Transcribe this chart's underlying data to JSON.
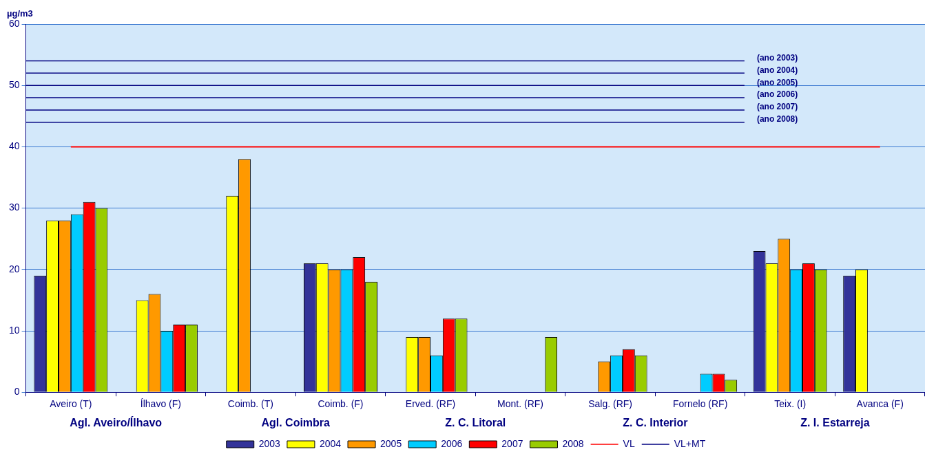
{
  "chart_data": {
    "type": "bar",
    "ylabel": "µg/m3",
    "categories": [
      "Aveiro (T)",
      "Ílhavo (F)",
      "Coimb. (T)",
      "Coimb. (F)",
      "Erved. (RF)",
      "Mont. (RF)",
      "Salg. (RF)",
      "Fornelo (RF)",
      "Teix. (I)",
      "Avanca (F)"
    ],
    "series": [
      {
        "name": "2003",
        "color": "#333399",
        "values": [
          19,
          null,
          null,
          21,
          null,
          null,
          null,
          null,
          23,
          19
        ]
      },
      {
        "name": "2004",
        "color": "#ffff00",
        "values": [
          28,
          15,
          32,
          21,
          9,
          null,
          null,
          null,
          21,
          20
        ]
      },
      {
        "name": "2005",
        "color": "#ff9900",
        "values": [
          28,
          16,
          38,
          20,
          9,
          null,
          5,
          null,
          25,
          null
        ]
      },
      {
        "name": "2006",
        "color": "#00ccff",
        "values": [
          29,
          10,
          null,
          20,
          6,
          null,
          6,
          3,
          20,
          null
        ]
      },
      {
        "name": "2007",
        "color": "#ff0000",
        "values": [
          31,
          11,
          null,
          22,
          12,
          null,
          7,
          3,
          21,
          null
        ]
      },
      {
        "name": "2008",
        "color": "#99cc00",
        "values": [
          30,
          11,
          null,
          18,
          12,
          9,
          6,
          2,
          20,
          null
        ]
      },
      {
        "name": "VL",
        "type": "line",
        "color": "#ff0000",
        "values": [
          40,
          40,
          40,
          40,
          40,
          40,
          40,
          40,
          40,
          40
        ]
      }
    ],
    "ref_lines": [
      {
        "axis": "y",
        "value": 54,
        "label": "(ano 2003)",
        "color": "#000080"
      },
      {
        "axis": "y",
        "value": 52,
        "label": "(ano 2004)",
        "color": "#000080"
      },
      {
        "axis": "y",
        "value": 50,
        "label": "(ano 2005)",
        "color": "#000080"
      },
      {
        "axis": "y",
        "value": 48,
        "label": "(ano 2006)",
        "color": "#000080"
      },
      {
        "axis": "y",
        "value": 46,
        "label": "(ano 2007)",
        "color": "#000080"
      },
      {
        "axis": "y",
        "value": 44,
        "label": "(ano 2008)",
        "color": "#000080"
      }
    ],
    "annotations": [
      "Agl. Aveiro/Ílhavo",
      "Agl. Coimbra",
      "Z. C. Litoral",
      "Z. C. Interior",
      "Z. I. Estarreja",
      "VL+MT"
    ],
    "ylim": [
      0,
      60
    ],
    "yticks": [
      0,
      10,
      20,
      30,
      40,
      50,
      60
    ],
    "grid": "y",
    "legend": "bottom"
  }
}
